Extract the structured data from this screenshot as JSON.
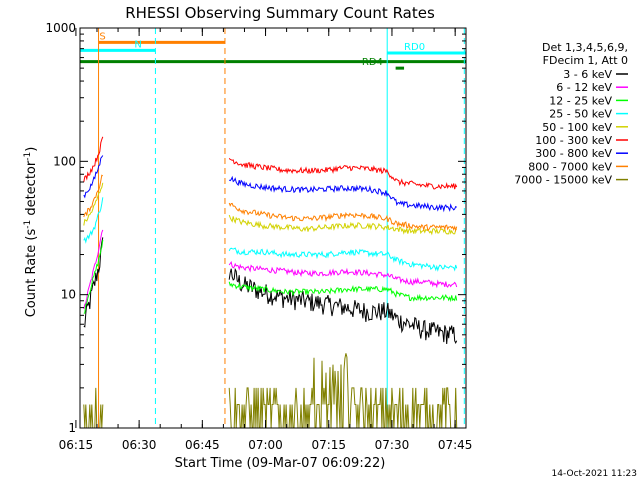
{
  "chart_data": {
    "type": "line",
    "title": "RHESSI Observing Summary Count Rates",
    "xlabel": "Start Time (09-Mar-07 06:09:22)",
    "ylabel_prefix": "Count Rate (s",
    "ylabel_sup": "-1",
    "ylabel_mid": " detector",
    "ylabel_sup2": "-1",
    "ylabel_suffix": ")",
    "y_scale": "log",
    "ylim": [
      1,
      1000
    ],
    "xlim_minutes": [
      6.6,
      98.2
    ],
    "x_ticks": [
      {
        "label": "06:15",
        "minute": 5.63
      },
      {
        "label": "06:30",
        "minute": 20.63
      },
      {
        "label": "06:45",
        "minute": 35.63
      },
      {
        "label": "07:00",
        "minute": 50.63
      },
      {
        "label": "07:15",
        "minute": 65.63
      },
      {
        "label": "07:30",
        "minute": 80.63
      },
      {
        "label": "07:45",
        "minute": 95.63
      }
    ],
    "y_ticks": [
      {
        "label": "1",
        "value": 1
      },
      {
        "label": "10",
        "value": 10
      },
      {
        "label": "100",
        "value": 100
      },
      {
        "label": "1000",
        "value": 1000
      }
    ],
    "legend_header": [
      "Det 1,3,4,5,6,9,",
      "FDecim 1, Att 0"
    ],
    "legend_position": "right",
    "footer_date": "14-Oct-2021 11:23",
    "series": [
      {
        "name": "3 - 6 keV",
        "color": "#000000",
        "seg1": {
          "x": [
            7.5,
            8.0,
            9.0,
            10.0,
            11.0,
            12.0
          ],
          "y": [
            5.5,
            7.0,
            9.0,
            12.0,
            16.0,
            24.0
          ]
        },
        "seg2": {
          "x": [
            42.0,
            45.0,
            50.0,
            55.0,
            60.0,
            65.0,
            70.0,
            75.0,
            79.5,
            82.0,
            85.0,
            88.0,
            92.0,
            96.0
          ],
          "y": [
            15.0,
            12.0,
            10.5,
            9.5,
            9.0,
            8.5,
            8.0,
            7.5,
            7.5,
            6.5,
            6.0,
            5.5,
            5.2,
            5.0
          ]
        }
      },
      {
        "name": "6 - 12 keV",
        "color": "#ff00ff",
        "seg1": {
          "x": [
            7.5,
            8.0,
            9.0,
            10.0,
            11.0,
            12.0
          ],
          "y": [
            7.5,
            9.0,
            12.0,
            16.0,
            22.0,
            32.0
          ]
        },
        "seg2": {
          "x": [
            42.0,
            45.0,
            50.0,
            55.0,
            60.0,
            65.0,
            70.0,
            75.0,
            79.5,
            82.0,
            85.0,
            88.0,
            92.0,
            96.0
          ],
          "y": [
            17.0,
            16.0,
            15.5,
            15.0,
            14.5,
            14.5,
            15.0,
            14.5,
            14.0,
            13.0,
            12.5,
            12.5,
            12.0,
            12.0
          ]
        }
      },
      {
        "name": "12 - 25 keV",
        "color": "#00ff00",
        "seg1": {
          "x": [
            7.5,
            8.0,
            9.0,
            10.0,
            11.0,
            12.0
          ],
          "y": [
            7.0,
            8.5,
            11.0,
            14.0,
            18.0,
            25.0
          ]
        },
        "seg2": {
          "x": [
            42.0,
            45.0,
            50.0,
            55.0,
            60.0,
            65.0,
            70.0,
            75.0,
            79.5,
            82.0,
            85.0,
            88.0,
            92.0,
            96.0
          ],
          "y": [
            12.0,
            11.5,
            11.0,
            10.5,
            10.5,
            10.5,
            11.0,
            11.0,
            11.0,
            10.0,
            9.5,
            9.5,
            9.5,
            9.5
          ]
        }
      },
      {
        "name": "25 - 50 keV",
        "color": "#00ffff",
        "seg1": {
          "x": [
            7.5,
            8.0,
            9.0,
            10.0,
            11.0,
            12.0
          ],
          "y": [
            26.0,
            26.0,
            28.0,
            32.0,
            40.0,
            52.0
          ]
        },
        "seg2": {
          "x": [
            42.0,
            45.0,
            50.0,
            55.0,
            60.0,
            65.0,
            70.0,
            75.0,
            79.5,
            82.0,
            85.0,
            88.0,
            92.0,
            96.0
          ],
          "y": [
            22.0,
            21.0,
            21.0,
            20.0,
            20.0,
            20.0,
            21.0,
            20.5,
            20.0,
            18.0,
            17.0,
            16.5,
            16.0,
            16.0
          ]
        }
      },
      {
        "name": "50 - 100 keV",
        "color": "#d2d200",
        "seg1": {
          "x": [
            7.5,
            8.0,
            9.0,
            10.0,
            11.0,
            12.0
          ],
          "y": [
            34.0,
            36.0,
            40.0,
            46.0,
            56.0,
            70.0
          ]
        },
        "seg2": {
          "x": [
            42.0,
            45.0,
            50.0,
            55.0,
            60.0,
            65.0,
            70.0,
            75.0,
            79.5,
            82.0,
            85.0,
            88.0,
            92.0,
            96.0
          ],
          "y": [
            38.0,
            35.0,
            33.0,
            32.0,
            31.0,
            32.0,
            33.0,
            33.0,
            32.0,
            31.0,
            30.0,
            30.0,
            30.0,
            30.0
          ]
        }
      },
      {
        "name": "100 - 300 keV",
        "color": "#ff0000",
        "seg1": {
          "x": [
            7.5,
            8.0,
            9.0,
            10.0,
            11.0,
            12.0
          ],
          "y": [
            72.0,
            76.0,
            84.0,
            95.0,
            115.0,
            150.0
          ]
        },
        "seg2": {
          "x": [
            42.0,
            45.0,
            50.0,
            55.0,
            60.0,
            65.0,
            70.0,
            75.0,
            79.5,
            82.0,
            85.0,
            88.0,
            92.0,
            96.0
          ],
          "y": [
            105.0,
            95.0,
            90.0,
            86.0,
            85.0,
            86.0,
            90.0,
            88.0,
            84.0,
            70.0,
            68.0,
            66.0,
            65.0,
            65.0
          ]
        }
      },
      {
        "name": "300 - 800 keV",
        "color": "#0000ff",
        "seg1": {
          "x": [
            7.5,
            8.0,
            9.0,
            10.0,
            11.0,
            12.0
          ],
          "y": [
            55.0,
            58.0,
            64.0,
            74.0,
            90.0,
            115.0
          ]
        },
        "seg2": {
          "x": [
            42.0,
            45.0,
            50.0,
            55.0,
            60.0,
            65.0,
            70.0,
            75.0,
            79.5,
            82.0,
            85.0,
            88.0,
            92.0,
            96.0
          ],
          "y": [
            75.0,
            68.0,
            64.0,
            62.0,
            61.0,
            62.0,
            63.0,
            62.0,
            58.0,
            48.0,
            47.0,
            46.0,
            45.0,
            45.0
          ]
        }
      },
      {
        "name": "800 - 7000 keV",
        "color": "#ff8000",
        "seg1": {
          "x": [
            7.5,
            8.0,
            9.0,
            10.0,
            11.0,
            12.0
          ],
          "y": [
            38.0,
            40.0,
            45.0,
            52.0,
            63.0,
            80.0
          ]
        },
        "seg2": {
          "x": [
            42.0,
            45.0,
            50.0,
            55.0,
            60.0,
            65.0,
            70.0,
            75.0,
            79.5,
            82.0,
            85.0,
            88.0,
            92.0,
            96.0
          ],
          "y": [
            48.0,
            43.0,
            40.0,
            38.0,
            37.0,
            38.0,
            40.0,
            39.0,
            37.0,
            34.0,
            33.0,
            32.0,
            32.0,
            32.0
          ]
        }
      },
      {
        "name": "7000 - 15000 keV",
        "color": "#808000",
        "seg1": {
          "x": [
            7.5,
            8.5,
            9.5,
            10.5,
            11.5,
            12.0
          ],
          "y": [
            1.5,
            1.5,
            1.5,
            2.0,
            2.5,
            3.0
          ]
        },
        "seg2": {
          "x": [
            42.0,
            50.0,
            60.0,
            66.0,
            70.0,
            79.5,
            82.0,
            96.0
          ],
          "y": [
            1.5,
            1.5,
            1.5,
            2.5,
            1.5,
            1.5,
            1.5,
            1.5
          ]
        }
      }
    ],
    "orbit_flags": [
      {
        "label": "S",
        "color": "#ff8000",
        "x_start": 11.0,
        "x_end": 41.0,
        "y_value": 780,
        "label_x": 11.2
      },
      {
        "label": "N",
        "color": "#00ffff",
        "x_start": 6.6,
        "x_end": 24.5,
        "y_value": 680,
        "label_x": 19.5
      },
      {
        "label": "RD0",
        "color": "#00ffff",
        "x_start": 79.5,
        "x_end": 98.2,
        "y_value": 650,
        "label_x": 83.5
      },
      {
        "label": "RD4",
        "color": "#008000",
        "x_start": 81.5,
        "x_end": 83.5,
        "y_value": 500,
        "label_x": 73.5
      },
      {
        "label": "",
        "color": "#008000",
        "x_start": 6.6,
        "x_end": 98.2,
        "y_value": 560,
        "label_x": 0
      }
    ],
    "vlines": [
      {
        "x": 11.0,
        "color": "#ff8000",
        "dashed": false
      },
      {
        "x": 24.5,
        "color": "#00ffff",
        "dashed": true
      },
      {
        "x": 41.0,
        "color": "#ff8000",
        "dashed": true
      },
      {
        "x": 79.5,
        "color": "#00ffff",
        "dashed": false
      },
      {
        "x": 97.8,
        "color": "#00ffff",
        "dashed": true
      }
    ]
  }
}
